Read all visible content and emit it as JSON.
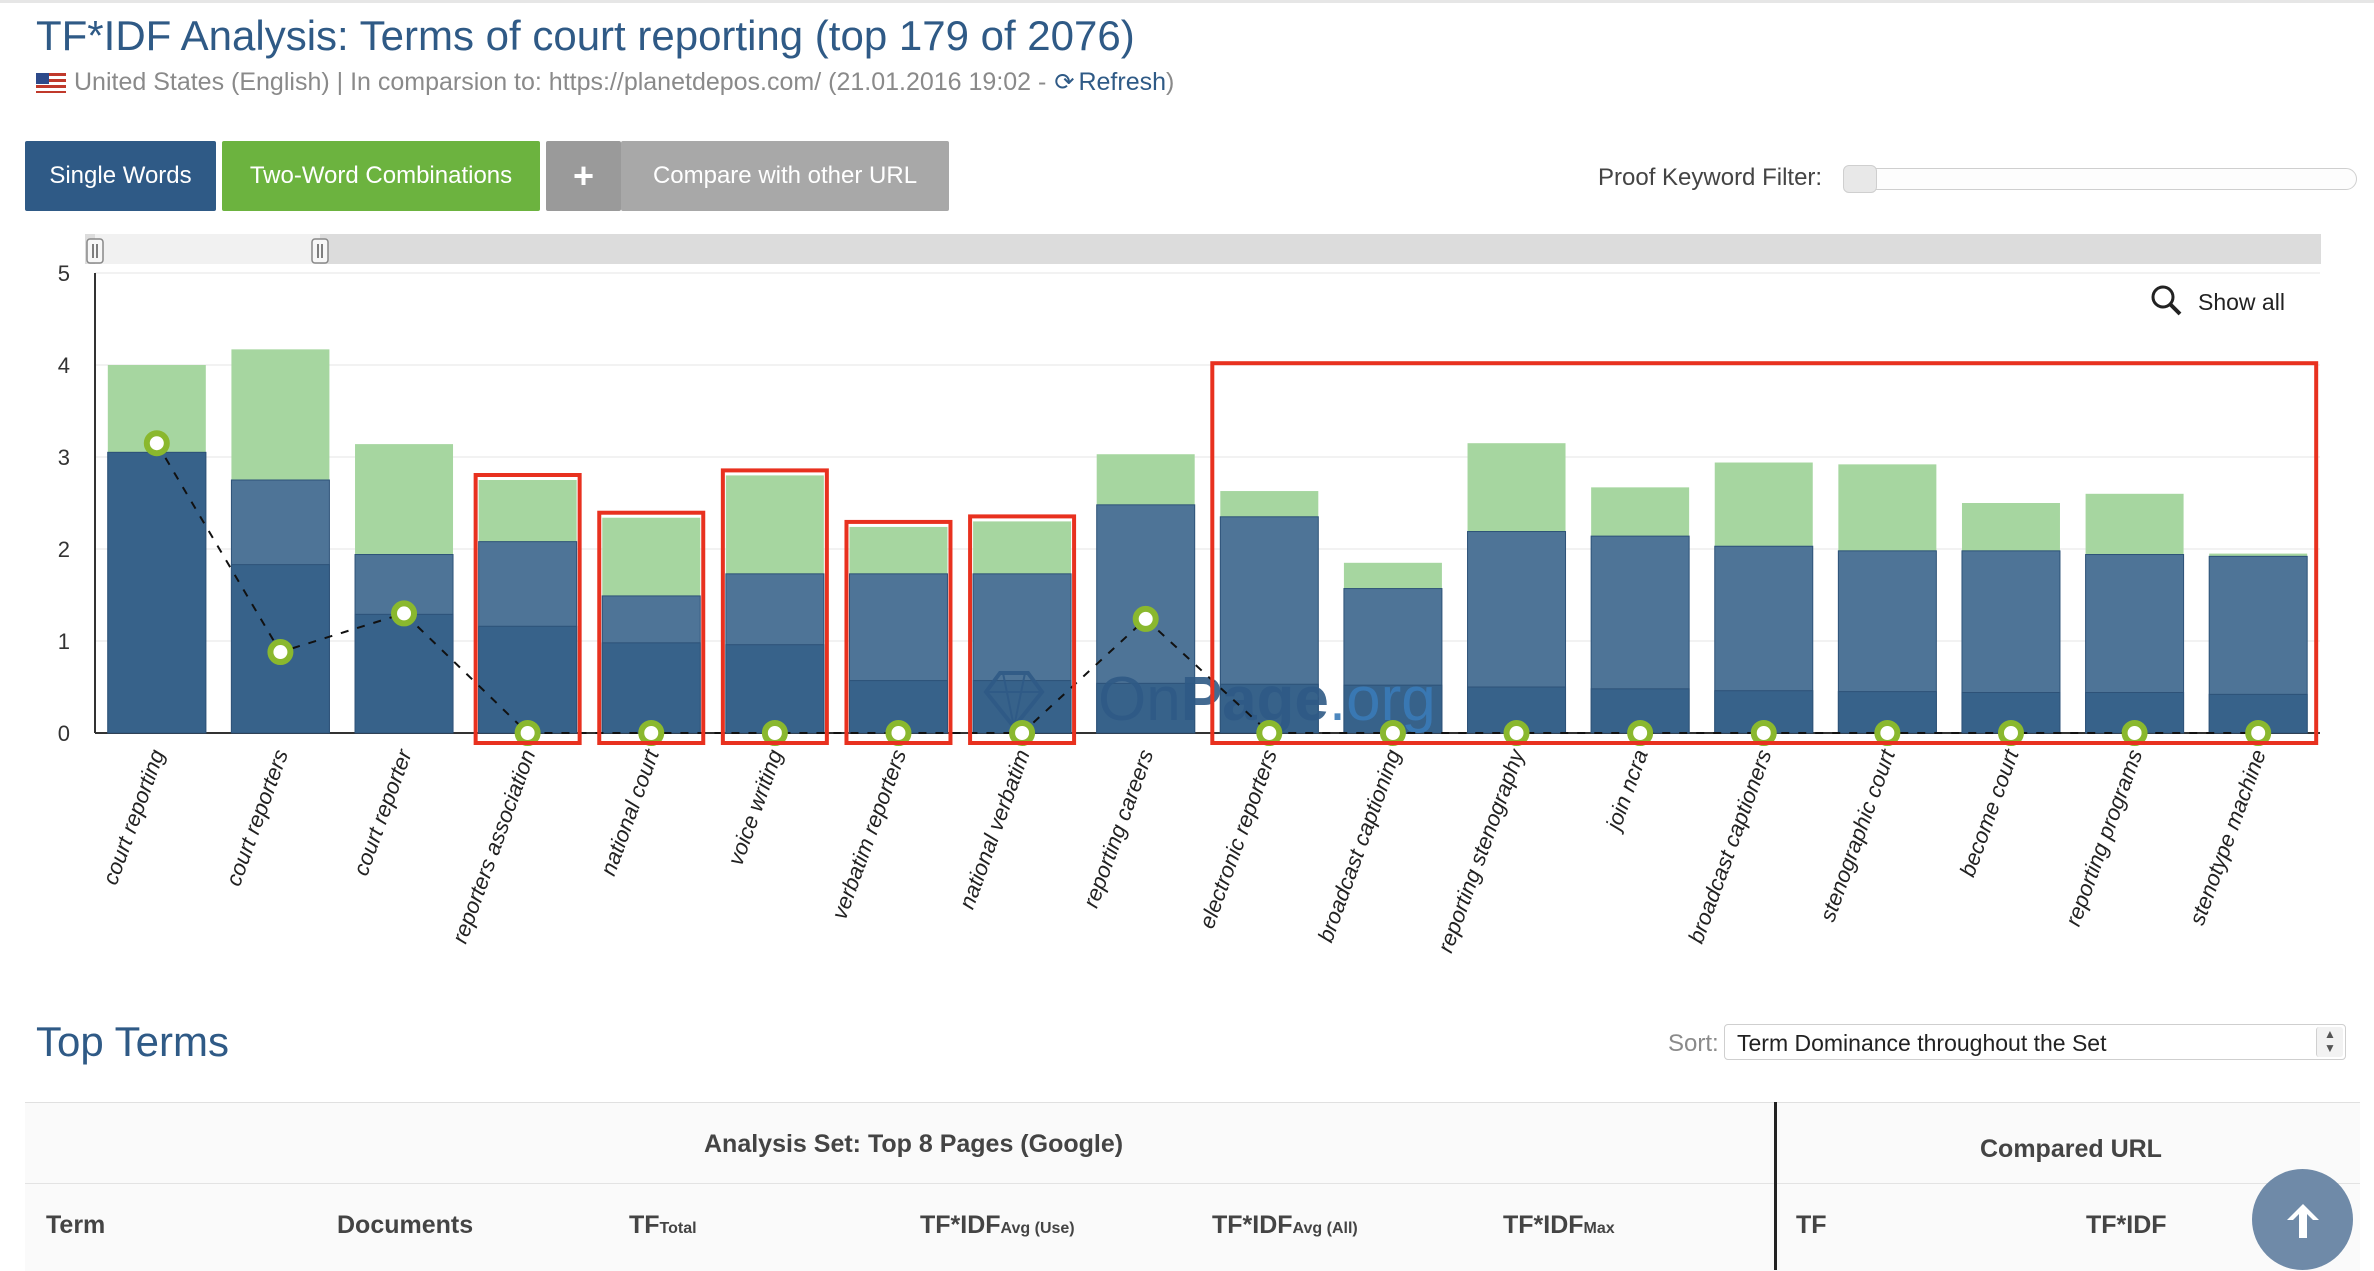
{
  "page": {
    "title": "TF*IDF Analysis: Terms of court reporting (top 179 of 2076)",
    "locale": "United States (English)",
    "comparison_text": "| In comparsion to: https://planetdepos.com/ (21.01.2016 19:02 -",
    "refresh_label": "Refresh",
    "refresh_close": ")"
  },
  "toolbar": {
    "single_words": "Single Words",
    "two_word": "Two-Word Combinations",
    "plus": "+",
    "compare": "Compare with other URL",
    "filter_label": "Proof Keyword Filter:",
    "filter_value": 0
  },
  "chart": {
    "show_all": "Show all",
    "watermark": "OnPage.org",
    "watermark_parts": [
      "On",
      "Page",
      ".org"
    ]
  },
  "chart_data": {
    "type": "bar",
    "title": "",
    "ylim": [
      0,
      5
    ],
    "yticks": [
      0,
      1,
      2,
      3,
      4,
      5
    ],
    "grid": true,
    "categories": [
      "court reporting",
      "court reporters",
      "court reporter",
      "reporters association",
      "national court",
      "voice writing",
      "verbatim reporters",
      "national verbatim",
      "reporting careers",
      "electronic reporters",
      "broadcast captioning",
      "reporting stenography",
      "join ncra",
      "broadcast captioners",
      "stenographic court",
      "become court",
      "reporting programs",
      "stenotype machine"
    ],
    "series": [
      {
        "values": [
          3.05,
          1.83,
          1.29,
          1.16,
          0.98,
          0.96,
          0.57,
          0.57,
          0.54,
          0.53,
          0.52,
          0.5,
          0.48,
          0.46,
          0.45,
          0.44,
          0.44,
          0.42
        ]
      },
      {
        "values": [
          3.05,
          2.75,
          1.94,
          2.08,
          1.49,
          1.73,
          1.73,
          1.73,
          2.48,
          2.35,
          1.57,
          2.19,
          2.14,
          2.03,
          1.98,
          1.98,
          1.94,
          1.92
        ]
      },
      {
        "values": [
          4.0,
          4.17,
          3.14,
          2.75,
          2.34,
          2.8,
          2.24,
          2.3,
          3.03,
          2.63,
          1.85,
          3.15,
          2.67,
          2.94,
          2.92,
          2.5,
          2.6,
          1.95
        ]
      },
      {
        "values": [
          3.15,
          0.88,
          1.3,
          0.0,
          0.0,
          0.0,
          0.0,
          0.0,
          1.24,
          0.0,
          0.0,
          0.0,
          0.0,
          0.0,
          0.0,
          0.0,
          0.0,
          0.0
        ]
      }
    ],
    "colors": {
      "dark": "#37628a",
      "mid": "#4e7497",
      "light": "#a6d6a0",
      "marker": "#8ab82e",
      "highlight": "#e8311f"
    },
    "highlighted_categories": [
      "reporters association",
      "national court",
      "voice writing",
      "verbatim reporters",
      "national verbatim",
      "electronic reporters",
      "broadcast captioning",
      "reporting stenography",
      "join ncra",
      "broadcast captioners",
      "stenographic court",
      "become court",
      "reporting programs",
      "stenotype machine"
    ]
  },
  "top_terms": {
    "title": "Top Terms",
    "sort_label": "Sort:",
    "sort_value": "Term Dominance throughout the Set",
    "group_analysis": "Analysis Set: Top 8 Pages (Google)",
    "group_compared": "Compared URL",
    "col_term": "Term",
    "col_documents": "Documents",
    "col_tf_total": "TF",
    "col_tf_total_sub": "Total",
    "col_tfidf_avg_use": "TF*IDF",
    "col_tfidf_avg_use_sub": "Avg (Use)",
    "col_tfidf_avg_all": "TF*IDF",
    "col_tfidf_avg_all_sub": "Avg (All)",
    "col_tfidf_max": "TF*IDF",
    "col_tfidf_max_sub": "Max",
    "col_tf": "TF",
    "col_tfidf": "TF*IDF"
  }
}
